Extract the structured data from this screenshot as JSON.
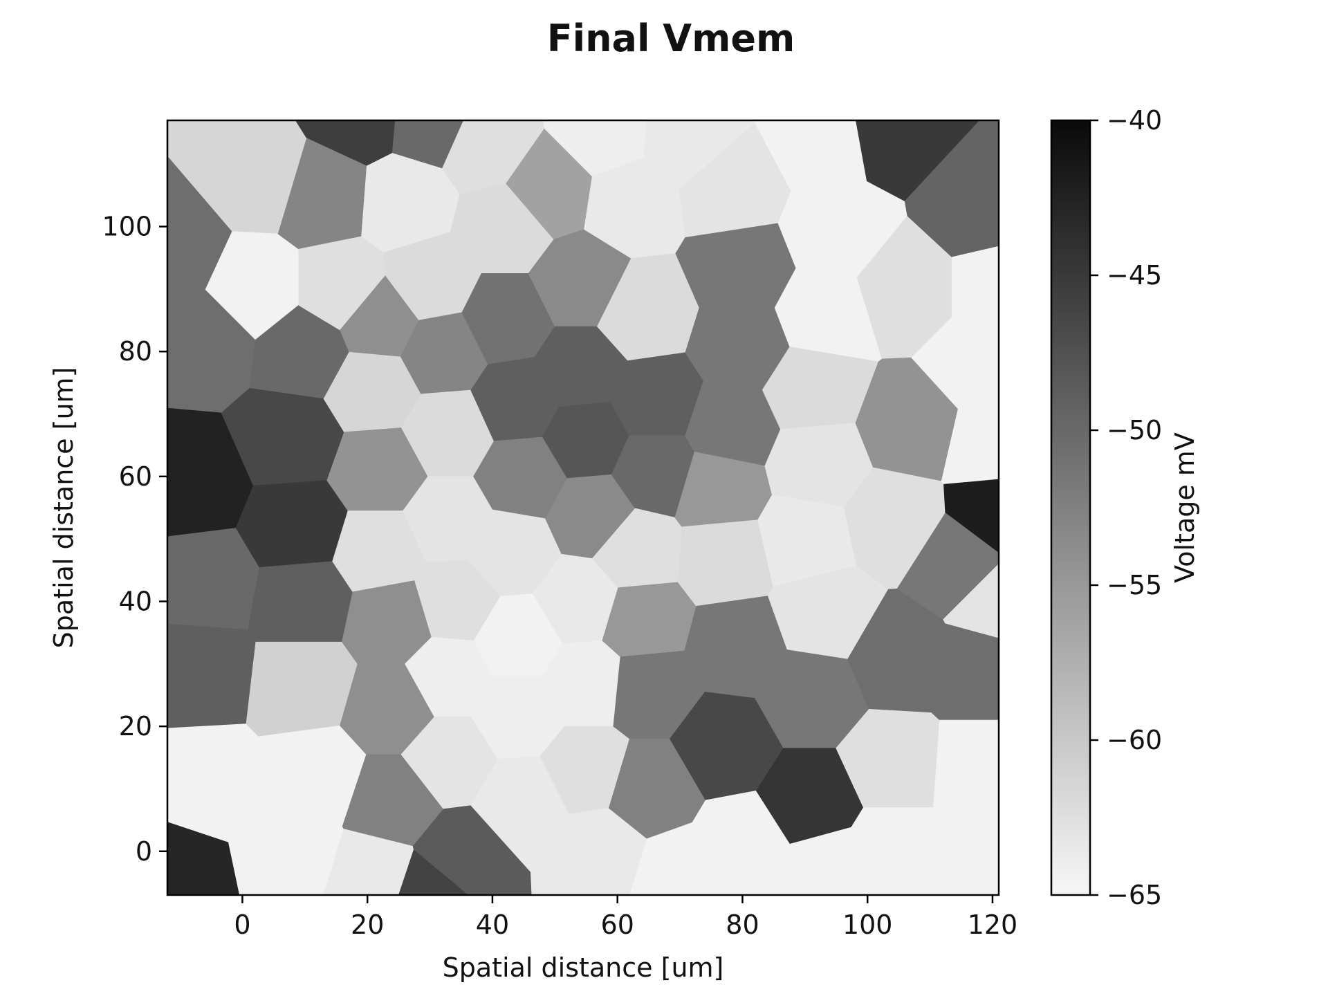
{
  "chart_data": {
    "type": "heatmap",
    "subtype": "voronoi-cells",
    "title": "Final Vmem",
    "xlabel": "Spatial distance [um]",
    "ylabel": "Spatial distance [um]",
    "xlim": [
      -12,
      121
    ],
    "ylim": [
      -7,
      117
    ],
    "xticks": [
      0,
      20,
      40,
      60,
      80,
      100,
      120
    ],
    "yticks": [
      0,
      20,
      40,
      60,
      80,
      100
    ],
    "grid": false,
    "colormap": "Greys",
    "colorbar": {
      "label": "Voltage mV",
      "min": -65,
      "max": -40,
      "ticks": [
        -40,
        -45,
        -50,
        -55,
        -60,
        -65
      ],
      "tick_labels": [
        "−40",
        "−45",
        "−50",
        "−55",
        "−60",
        "−65"
      ],
      "color_low": "#f7f7f7",
      "color_high": "#0a0a0a"
    },
    "cells": [
      {
        "x": -11,
        "y": 96,
        "v": -50.5
      },
      {
        "x": -6,
        "y": 82,
        "v": -50.5
      },
      {
        "x": -8,
        "y": 59,
        "v": -42.5
      },
      {
        "x": -6,
        "y": 43,
        "v": -50
      },
      {
        "x": -7,
        "y": 29,
        "v": -49
      },
      {
        "x": -6,
        "y": 11,
        "v": -64.5
      },
      {
        "x": -11,
        "y": -4,
        "v": -43
      },
      {
        "x": 3,
        "y": 108,
        "v": -61.5
      },
      {
        "x": 2,
        "y": 90,
        "v": -64.5
      },
      {
        "x": 10,
        "y": 80,
        "v": -50
      },
      {
        "x": 8,
        "y": 66,
        "v": -46.5
      },
      {
        "x": 9,
        "y": 52,
        "v": -45
      },
      {
        "x": 10,
        "y": 40,
        "v": -49
      },
      {
        "x": 10,
        "y": 27,
        "v": -61
      },
      {
        "x": 12,
        "y": 12,
        "v": -64.5
      },
      {
        "x": 8,
        "y": 0,
        "v": -64.5
      },
      {
        "x": 19,
        "y": 118,
        "v": -45.5
      },
      {
        "x": 13,
        "y": 105,
        "v": -53
      },
      {
        "x": 16,
        "y": 90,
        "v": -62.5
      },
      {
        "x": 22,
        "y": 85,
        "v": -54
      },
      {
        "x": 21,
        "y": 74,
        "v": -61.5
      },
      {
        "x": 22,
        "y": 61,
        "v": -54.5
      },
      {
        "x": 22,
        "y": 48,
        "v": -62.5
      },
      {
        "x": 24,
        "y": 37,
        "v": -54
      },
      {
        "x": 24,
        "y": 23,
        "v": -54
      },
      {
        "x": 24,
        "y": 8,
        "v": -52.5
      },
      {
        "x": 21,
        "y": -4,
        "v": -63.5
      },
      {
        "x": 30,
        "y": 117,
        "v": -50
      },
      {
        "x": 26,
        "y": 104,
        "v": -63.5
      },
      {
        "x": 30,
        "y": 91,
        "v": -62
      },
      {
        "x": 32,
        "y": 80,
        "v": -53
      },
      {
        "x": 33,
        "y": 67,
        "v": -62
      },
      {
        "x": 33,
        "y": 53,
        "v": -63
      },
      {
        "x": 34,
        "y": 40,
        "v": -62.5
      },
      {
        "x": 33,
        "y": 28,
        "v": -64
      },
      {
        "x": 33,
        "y": 15,
        "v": -63
      },
      {
        "x": 35,
        "y": -1,
        "v": -48.5
      },
      {
        "x": 30,
        "y": -7,
        "v": -46
      },
      {
        "x": 39,
        "y": 113,
        "v": -62.5
      },
      {
        "x": 42,
        "y": 100,
        "v": -62
      },
      {
        "x": 42,
        "y": 85,
        "v": -51
      },
      {
        "x": 44,
        "y": 72,
        "v": -49
      },
      {
        "x": 45,
        "y": 60,
        "v": -52.5
      },
      {
        "x": 43,
        "y": 48,
        "v": -63
      },
      {
        "x": 44,
        "y": 34,
        "v": -64.5
      },
      {
        "x": 44,
        "y": 22,
        "v": -64
      },
      {
        "x": 45,
        "y": 8,
        "v": -63.5
      },
      {
        "x": 49,
        "y": 106,
        "v": -56
      },
      {
        "x": 54,
        "y": 91,
        "v": -53.5
      },
      {
        "x": 54,
        "y": 77,
        "v": -49
      },
      {
        "x": 55,
        "y": 66,
        "v": -48
      },
      {
        "x": 56,
        "y": 54,
        "v": -53.5
      },
      {
        "x": 54,
        "y": 40,
        "v": -63.5
      },
      {
        "x": 55,
        "y": 27,
        "v": -64
      },
      {
        "x": 55,
        "y": 13,
        "v": -62.5
      },
      {
        "x": 57,
        "y": 0,
        "v": -63.5
      },
      {
        "x": 58,
        "y": 115,
        "v": -64
      },
      {
        "x": 62,
        "y": 104,
        "v": -63.5
      },
      {
        "x": 64,
        "y": 86,
        "v": -62
      },
      {
        "x": 66,
        "y": 72,
        "v": -49
      },
      {
        "x": 66,
        "y": 61,
        "v": -50
      },
      {
        "x": 63,
        "y": 48,
        "v": -62.5
      },
      {
        "x": 64,
        "y": 37,
        "v": -55
      },
      {
        "x": 65,
        "y": 26,
        "v": -51.5
      },
      {
        "x": 65,
        "y": 10,
        "v": -52.5
      },
      {
        "x": 70,
        "y": -4,
        "v": -64.5
      },
      {
        "x": 71,
        "y": 114,
        "v": -63.5
      },
      {
        "x": 78,
        "y": 106,
        "v": -63
      },
      {
        "x": 80,
        "y": 93,
        "v": -51.5
      },
      {
        "x": 80,
        "y": 81,
        "v": -51.5
      },
      {
        "x": 78,
        "y": 68,
        "v": -51.5
      },
      {
        "x": 76,
        "y": 58,
        "v": -55
      },
      {
        "x": 77,
        "y": 47,
        "v": -62
      },
      {
        "x": 79,
        "y": 33,
        "v": -51.5
      },
      {
        "x": 77,
        "y": 17,
        "v": -46.5
      },
      {
        "x": 80,
        "y": 1,
        "v": -64.5
      },
      {
        "x": 93,
        "y": 114,
        "v": -64.5
      },
      {
        "x": 95,
        "y": 99,
        "v": -64.5
      },
      {
        "x": 93,
        "y": 86,
        "v": -64.5
      },
      {
        "x": 91,
        "y": 74,
        "v": -62
      },
      {
        "x": 92,
        "y": 62,
        "v": -63
      },
      {
        "x": 90,
        "y": 50,
        "v": -63.5
      },
      {
        "x": 93,
        "y": 38,
        "v": -63
      },
      {
        "x": 91,
        "y": 25,
        "v": -51.5
      },
      {
        "x": 91,
        "y": 8,
        "v": -44.5
      },
      {
        "x": 94,
        "y": -3,
        "v": -64.5
      },
      {
        "x": 104,
        "y": 116,
        "v": -45
      },
      {
        "x": 106,
        "y": 90,
        "v": -62.5
      },
      {
        "x": 107,
        "y": 68,
        "v": -54.5
      },
      {
        "x": 104,
        "y": 53,
        "v": -62.5
      },
      {
        "x": 105,
        "y": 31,
        "v": -50.5
      },
      {
        "x": 104,
        "y": 14,
        "v": -62.5
      },
      {
        "x": 104,
        "y": 0,
        "v": -64.5
      },
      {
        "x": 118,
        "y": 103,
        "v": -49.5
      },
      {
        "x": 121,
        "y": 90,
        "v": -64.5
      },
      {
        "x": 118,
        "y": 78,
        "v": -64.5
      },
      {
        "x": 120,
        "y": 65,
        "v": -64.5
      },
      {
        "x": 121,
        "y": 54,
        "v": -42
      },
      {
        "x": 115,
        "y": 46,
        "v": -51.5
      },
      {
        "x": 121,
        "y": 40,
        "v": -63
      },
      {
        "x": 118,
        "y": 29,
        "v": -50.5
      },
      {
        "x": 118,
        "y": 13,
        "v": -64.5
      },
      {
        "x": 118,
        "y": 0,
        "v": -64.5
      }
    ]
  }
}
